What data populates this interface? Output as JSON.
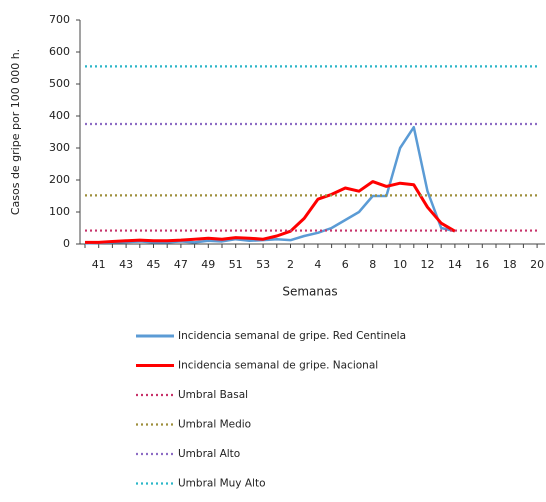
{
  "chart_data": {
    "type": "line",
    "x_label": "Semanas",
    "y_label": "Casos de gripe por 100 000 h.",
    "categories": [
      null,
      "41",
      null,
      "43",
      null,
      "45",
      null,
      "47",
      null,
      "49",
      null,
      "51",
      null,
      "53",
      null,
      "2",
      null,
      "4",
      null,
      "6",
      null,
      "8",
      null,
      "10",
      null,
      "12",
      null,
      "14",
      null,
      "16",
      null,
      "18",
      null,
      "20"
    ],
    "ylim": [
      0,
      700
    ],
    "yticks": [
      0,
      100,
      200,
      300,
      400,
      500,
      600,
      700
    ],
    "series": [
      {
        "name": "Incidencia semanal de gripe. Red Centinela",
        "color": "#5b9bd5",
        "dash": false,
        "values": [
          2,
          3,
          5,
          6,
          8,
          5,
          5,
          8,
          5,
          10,
          8,
          15,
          10,
          12,
          15,
          12,
          25,
          35,
          50,
          75,
          100,
          150,
          150,
          300,
          365,
          165,
          50,
          40,
          null,
          null,
          null,
          null,
          null,
          null
        ]
      },
      {
        "name": "Incidencia semanal de gripe. Nacional",
        "color": "#ff0000",
        "dash": false,
        "values": [
          5,
          5,
          8,
          10,
          12,
          10,
          10,
          12,
          15,
          18,
          15,
          20,
          18,
          15,
          25,
          40,
          80,
          140,
          155,
          175,
          165,
          195,
          180,
          190,
          185,
          115,
          65,
          40,
          null,
          null,
          null,
          null,
          null,
          null
        ]
      },
      {
        "name": "Umbral Basal",
        "color": "#c8336a",
        "dash": true,
        "values": [
          42,
          42,
          42,
          42,
          42,
          42,
          42,
          42,
          42,
          42,
          42,
          42,
          42,
          42,
          42,
          42,
          42,
          42,
          42,
          42,
          42,
          42,
          42,
          42,
          42,
          42,
          42,
          42,
          42,
          42,
          42,
          42,
          42,
          42
        ]
      },
      {
        "name": "Umbral Medio",
        "color": "#9e8f3c",
        "dash": true,
        "values": [
          152,
          152,
          152,
          152,
          152,
          152,
          152,
          152,
          152,
          152,
          152,
          152,
          152,
          152,
          152,
          152,
          152,
          152,
          152,
          152,
          152,
          152,
          152,
          152,
          152,
          152,
          152,
          152,
          152,
          152,
          152,
          152,
          152,
          152
        ]
      },
      {
        "name": "Umbral Alto",
        "color": "#8d6cc4",
        "dash": true,
        "values": [
          375,
          375,
          375,
          375,
          375,
          375,
          375,
          375,
          375,
          375,
          375,
          375,
          375,
          375,
          375,
          375,
          375,
          375,
          375,
          375,
          375,
          375,
          375,
          375,
          375,
          375,
          375,
          375,
          375,
          375,
          375,
          375,
          375,
          375
        ]
      },
      {
        "name": "Umbral Muy Alto",
        "color": "#2bb6c8",
        "dash": true,
        "values": [
          555,
          555,
          555,
          555,
          555,
          555,
          555,
          555,
          555,
          555,
          555,
          555,
          555,
          555,
          555,
          555,
          555,
          555,
          555,
          555,
          555,
          555,
          555,
          555,
          555,
          555,
          555,
          555,
          555,
          555,
          555,
          555,
          555,
          555
        ]
      }
    ]
  }
}
